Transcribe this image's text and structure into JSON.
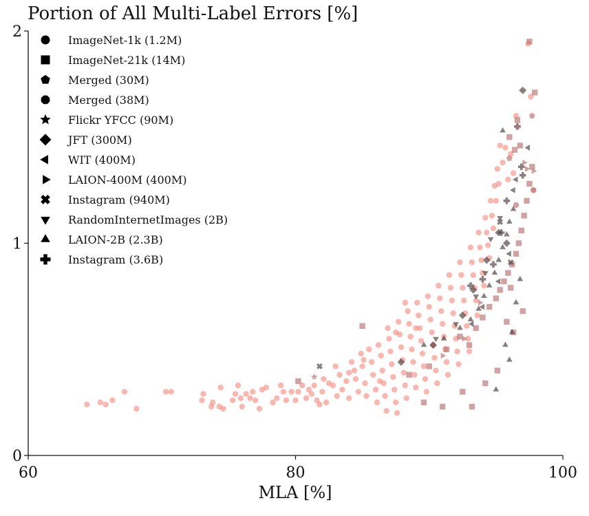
{
  "chart_data": {
    "type": "scatter",
    "title": "Portion of All Multi-Label Errors [%]",
    "xlabel": "MLA [%]",
    "ylabel": "",
    "xlim": [
      60,
      100
    ],
    "ylim": [
      0,
      2
    ],
    "x_ticks": [
      60,
      80,
      100
    ],
    "y_ticks": [
      0,
      1,
      2
    ],
    "grid": false,
    "legend_position": "top-left",
    "colors": {
      "light": "#f47c6e",
      "dark": "#4a3a3a",
      "mid": "#b87070"
    },
    "legend": [
      {
        "name": "ImageNet-1k (1.2M)",
        "marker": "circle"
      },
      {
        "name": "ImageNet-21k (14M)",
        "marker": "square"
      },
      {
        "name": "Merged (30M)",
        "marker": "pentagon"
      },
      {
        "name": "Merged (38M)",
        "marker": "octagon"
      },
      {
        "name": "Flickr YFCC (90M)",
        "marker": "star"
      },
      {
        "name": "JFT (300M)",
        "marker": "diamond"
      },
      {
        "name": "WIT (400M)",
        "marker": "triangle-left"
      },
      {
        "name": "LAION-400M (400M)",
        "marker": "triangle-right"
      },
      {
        "name": "Instagram (940M)",
        "marker": "x-cross"
      },
      {
        "name": "RandomInternetImages (2B)",
        "marker": "triangle-down"
      },
      {
        "name": "LAION-2B (2.3B)",
        "marker": "triangle-up"
      },
      {
        "name": "Instagram (3.6B)",
        "marker": "plus"
      }
    ],
    "series": [
      {
        "marker": "circle",
        "color": "light",
        "points": [
          [
            64.4,
            0.24
          ],
          [
            65.4,
            0.25
          ],
          [
            65.8,
            0.24
          ],
          [
            66.3,
            0.26
          ],
          [
            67.2,
            0.3
          ],
          [
            68.1,
            0.22
          ],
          [
            70.3,
            0.3
          ],
          [
            70.7,
            0.3
          ],
          [
            73.0,
            0.26
          ],
          [
            73.1,
            0.29
          ],
          [
            73.7,
            0.23
          ],
          [
            73.8,
            0.25
          ],
          [
            74.3,
            0.23
          ],
          [
            74.4,
            0.32
          ],
          [
            74.6,
            0.22
          ],
          [
            75.3,
            0.26
          ],
          [
            75.5,
            0.29
          ],
          [
            75.7,
            0.33
          ],
          [
            75.9,
            0.27
          ],
          [
            76.0,
            0.23
          ],
          [
            76.3,
            0.29
          ],
          [
            76.6,
            0.27
          ],
          [
            76.8,
            0.3
          ],
          [
            77.0,
            0.26
          ],
          [
            77.3,
            0.22
          ],
          [
            77.5,
            0.31
          ],
          [
            77.8,
            0.32
          ],
          [
            78.3,
            0.25
          ],
          [
            78.6,
            0.27
          ],
          [
            78.9,
            0.33
          ],
          [
            79.1,
            0.3
          ],
          [
            79.3,
            0.26
          ],
          [
            79.7,
            0.3
          ],
          [
            80.0,
            0.26
          ],
          [
            80.2,
            0.3
          ],
          [
            80.5,
            0.33
          ],
          [
            80.8,
            0.27
          ],
          [
            81.0,
            0.31
          ],
          [
            81.2,
            0.29
          ],
          [
            81.4,
            0.33
          ],
          [
            81.6,
            0.26
          ],
          [
            81.8,
            0.24
          ],
          [
            82.0,
            0.3
          ],
          [
            82.3,
            0.25
          ],
          [
            82.5,
            0.34
          ],
          [
            82.8,
            0.33
          ],
          [
            83.1,
            0.28
          ],
          [
            83.3,
            0.38
          ],
          [
            83.5,
            0.31
          ],
          [
            83.8,
            0.35
          ],
          [
            84.0,
            0.27
          ],
          [
            84.2,
            0.44
          ],
          [
            84.4,
            0.4
          ],
          [
            84.5,
            0.36
          ],
          [
            84.7,
            0.3
          ],
          [
            84.9,
            0.48
          ],
          [
            85.0,
            0.42
          ],
          [
            85.2,
            0.34
          ],
          [
            85.3,
            0.28
          ],
          [
            85.5,
            0.5
          ],
          [
            85.7,
            0.44
          ],
          [
            85.8,
            0.38
          ],
          [
            86.0,
            0.31
          ],
          [
            86.1,
            0.25
          ],
          [
            86.2,
            0.52
          ],
          [
            86.4,
            0.47
          ],
          [
            86.5,
            0.4
          ],
          [
            86.6,
            0.34
          ],
          [
            86.7,
            0.28
          ],
          [
            86.8,
            0.21
          ],
          [
            86.9,
            0.6
          ],
          [
            87.0,
            0.55
          ],
          [
            87.1,
            0.49
          ],
          [
            87.2,
            0.43
          ],
          [
            87.3,
            0.37
          ],
          [
            87.4,
            0.31
          ],
          [
            87.5,
            0.25
          ],
          [
            87.6,
            0.2
          ],
          [
            87.7,
            0.63
          ],
          [
            87.8,
            0.57
          ],
          [
            87.9,
            0.51
          ],
          [
            88.0,
            0.45
          ],
          [
            88.1,
            0.39
          ],
          [
            88.2,
            0.33
          ],
          [
            88.3,
            0.27
          ],
          [
            88.4,
            0.68
          ],
          [
            88.5,
            0.62
          ],
          [
            88.6,
            0.56
          ],
          [
            88.7,
            0.5
          ],
          [
            88.8,
            0.44
          ],
          [
            88.9,
            0.38
          ],
          [
            89.0,
            0.32
          ],
          [
            89.1,
            0.72
          ],
          [
            89.2,
            0.66
          ],
          [
            89.3,
            0.6
          ],
          [
            89.4,
            0.54
          ],
          [
            89.5,
            0.48
          ],
          [
            89.6,
            0.42
          ],
          [
            89.7,
            0.36
          ],
          [
            89.8,
            0.3
          ],
          [
            89.9,
            0.75
          ],
          [
            90.0,
            0.7
          ],
          [
            90.1,
            0.64
          ],
          [
            90.2,
            0.58
          ],
          [
            90.3,
            0.52
          ],
          [
            90.4,
            0.46
          ],
          [
            90.5,
            0.4
          ],
          [
            90.6,
            0.34
          ],
          [
            90.7,
            0.8
          ],
          [
            90.8,
            0.74
          ],
          [
            90.9,
            0.68
          ],
          [
            91.0,
            0.62
          ],
          [
            91.1,
            0.56
          ],
          [
            91.2,
            0.5
          ],
          [
            91.3,
            0.44
          ],
          [
            91.4,
            0.38
          ],
          [
            91.5,
            0.85
          ],
          [
            91.6,
            0.79
          ],
          [
            91.7,
            0.73
          ],
          [
            91.8,
            0.67
          ],
          [
            91.9,
            0.61
          ],
          [
            92.0,
            0.55
          ],
          [
            92.1,
            0.49
          ],
          [
            92.2,
            0.43
          ],
          [
            92.3,
            0.91
          ],
          [
            92.4,
            0.85
          ],
          [
            92.5,
            0.79
          ],
          [
            92.6,
            0.73
          ],
          [
            92.7,
            0.67
          ],
          [
            92.8,
            0.61
          ],
          [
            92.9,
            0.55
          ],
          [
            93.0,
            0.49
          ],
          [
            93.1,
            0.98
          ],
          [
            93.2,
            0.91
          ],
          [
            93.3,
            0.85
          ],
          [
            93.4,
            0.79
          ],
          [
            93.5,
            0.73
          ],
          [
            93.6,
            0.66
          ],
          [
            93.7,
            1.05
          ],
          [
            93.8,
            0.98
          ],
          [
            93.9,
            0.92
          ],
          [
            94.0,
            0.86
          ],
          [
            94.1,
            0.8
          ],
          [
            94.2,
            1.12
          ],
          [
            94.3,
            1.05
          ],
          [
            94.4,
            0.99
          ],
          [
            94.5,
            0.93
          ],
          [
            94.6,
            1.2
          ],
          [
            94.7,
            1.13
          ],
          [
            94.8,
            1.07
          ],
          [
            94.9,
            1.27
          ],
          [
            95.0,
            1.2
          ],
          [
            95.1,
            1.35
          ],
          [
            95.2,
            1.28
          ],
          [
            95.3,
            1.46
          ],
          [
            95.5,
            1.38
          ],
          [
            95.7,
            1.45
          ],
          [
            95.9,
            1.3
          ],
          [
            96.1,
            1.42
          ],
          [
            96.3,
            1.33
          ],
          [
            96.5,
            1.6
          ],
          [
            97.4,
            1.94
          ],
          [
            97.6,
            1.69
          ],
          [
            97.8,
            1.25
          ],
          [
            87.5,
            0.58
          ],
          [
            88.2,
            0.72
          ],
          [
            89.0,
            0.6
          ],
          [
            86.3,
            0.35
          ],
          [
            85.1,
            0.45
          ],
          [
            84.0,
            0.39
          ],
          [
            83.0,
            0.42
          ],
          [
            82.1,
            0.36
          ]
        ]
      },
      {
        "marker": "square",
        "color": "mid",
        "points": [
          [
            80.2,
            0.35
          ],
          [
            85.0,
            0.61
          ],
          [
            88.5,
            0.38
          ],
          [
            90.0,
            0.42
          ],
          [
            91.3,
            0.5
          ],
          [
            92.3,
            0.56
          ],
          [
            93.0,
            0.52
          ],
          [
            93.5,
            0.6
          ],
          [
            94.0,
            0.65
          ],
          [
            94.5,
            0.7
          ],
          [
            95.0,
            0.74
          ],
          [
            95.3,
            0.78
          ],
          [
            95.6,
            0.82
          ],
          [
            95.9,
            0.86
          ],
          [
            96.2,
            0.9
          ],
          [
            96.5,
            0.95
          ],
          [
            96.7,
            1.0
          ],
          [
            96.9,
            1.06
          ],
          [
            97.1,
            1.13
          ],
          [
            97.3,
            1.2
          ],
          [
            97.5,
            1.28
          ],
          [
            97.7,
            1.36
          ],
          [
            96.0,
            1.5
          ],
          [
            96.4,
            1.44
          ],
          [
            96.8,
            1.46
          ],
          [
            96.6,
            1.58
          ],
          [
            97.9,
            1.71
          ],
          [
            97.5,
            1.95
          ],
          [
            93.2,
            0.23
          ],
          [
            89.6,
            0.25
          ],
          [
            91.0,
            0.23
          ],
          [
            95.1,
            0.4
          ],
          [
            96.3,
            0.58
          ],
          [
            97.0,
            0.68
          ],
          [
            94.2,
            0.34
          ],
          [
            92.5,
            0.3
          ],
          [
            96.1,
            0.79
          ],
          [
            95.8,
            0.63
          ]
        ]
      },
      {
        "marker": "triangle-up",
        "color": "dark",
        "points": [
          [
            89.6,
            0.52
          ],
          [
            91.1,
            0.55
          ],
          [
            92.3,
            0.6
          ],
          [
            93.1,
            0.64
          ],
          [
            93.7,
            0.69
          ],
          [
            94.1,
            0.75
          ],
          [
            94.5,
            0.8
          ],
          [
            94.9,
            0.86
          ],
          [
            95.2,
            0.92
          ],
          [
            95.5,
            0.98
          ],
          [
            95.8,
            1.04
          ],
          [
            96.0,
            1.1
          ],
          [
            96.3,
            1.16
          ],
          [
            95.5,
            1.53
          ],
          [
            95.7,
            0.52
          ],
          [
            96.2,
            0.58
          ],
          [
            96.5,
            0.72
          ],
          [
            96.8,
            0.83
          ],
          [
            95.0,
            0.31
          ],
          [
            96.0,
            0.45
          ]
        ]
      },
      {
        "marker": "triangle-down",
        "color": "dark",
        "points": [
          [
            90.5,
            0.55
          ],
          [
            92.0,
            0.62
          ],
          [
            93.5,
            0.75
          ],
          [
            94.2,
            0.86
          ],
          [
            94.6,
            1.02
          ],
          [
            95.3,
            1.12
          ]
        ]
      },
      {
        "marker": "triangle-left",
        "color": "dark",
        "points": [
          [
            93.2,
            0.62
          ],
          [
            94.0,
            0.7
          ],
          [
            95.2,
            0.82
          ],
          [
            96.0,
            0.95
          ],
          [
            96.5,
            1.3
          ],
          [
            97.4,
            1.45
          ],
          [
            96.3,
            1.25
          ]
        ]
      },
      {
        "marker": "triangle-right",
        "color": "mid",
        "points": [
          [
            91.0,
            0.47
          ],
          [
            92.6,
            0.55
          ],
          [
            93.8,
            0.72
          ],
          [
            97.1,
            1.38
          ],
          [
            97.3,
            1.35
          ],
          [
            97.8,
            1.34
          ]
        ]
      },
      {
        "marker": "diamond",
        "color": "dark",
        "points": [
          [
            87.9,
            0.44
          ],
          [
            90.3,
            0.52
          ],
          [
            92.5,
            0.66
          ],
          [
            93.3,
            0.78
          ],
          [
            94.3,
            0.92
          ],
          [
            95.2,
            1.05
          ],
          [
            95.8,
            1.0
          ],
          [
            97.0,
            1.72
          ]
        ]
      },
      {
        "marker": "plus",
        "color": "dark",
        "points": [
          [
            93.1,
            0.8
          ],
          [
            94.0,
            0.83
          ],
          [
            94.8,
            0.9
          ],
          [
            95.4,
            1.05
          ],
          [
            95.8,
            1.2
          ],
          [
            96.6,
            1.55
          ],
          [
            96.9,
            1.36
          ],
          [
            97.0,
            1.32
          ]
        ]
      },
      {
        "marker": "x-cross",
        "color": "dark",
        "points": [
          [
            81.8,
            0.42
          ],
          [
            95.3,
            1.1
          ],
          [
            96.1,
            0.91
          ]
        ]
      },
      {
        "marker": "star",
        "color": "mid",
        "points": [
          [
            81.4,
            0.37
          ],
          [
            96.6,
            1.55
          ]
        ]
      },
      {
        "marker": "pentagon",
        "color": "mid",
        "points": [
          [
            97.7,
            1.6
          ],
          [
            96.0,
            1.4
          ]
        ]
      },
      {
        "marker": "octagon",
        "color": "mid",
        "points": [
          [
            97.8,
            1.25
          ],
          [
            96.5,
            1.18
          ]
        ]
      }
    ]
  }
}
